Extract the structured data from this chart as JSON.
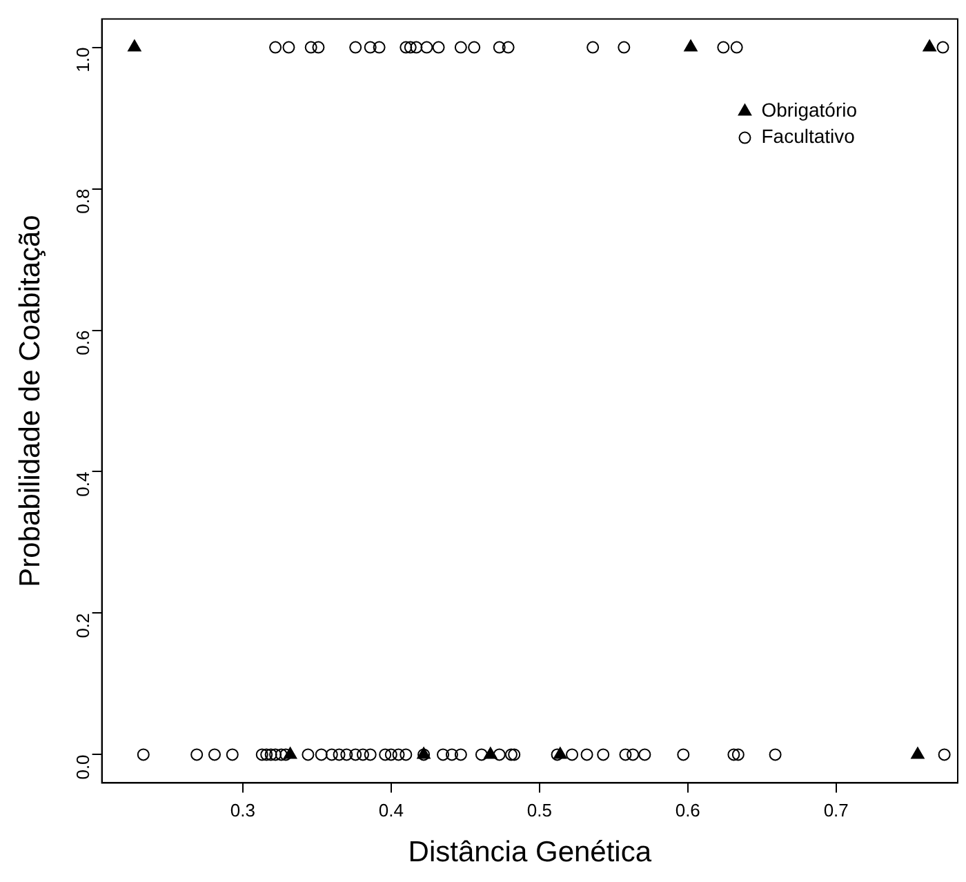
{
  "chart_data": {
    "type": "scatter",
    "xlabel": "Distância Genética",
    "ylabel": "Probabilidade de Coabitação",
    "xlim": [
      0.205,
      0.782
    ],
    "xticks": [
      0.3,
      0.4,
      0.5,
      0.6,
      0.7
    ],
    "ylim": [
      -0.04,
      1.04
    ],
    "yticks": [
      {
        "value": 0,
        "label": "0.0"
      },
      {
        "value": 0.2,
        "label": "0.2"
      },
      {
        "value": 0.4,
        "label": "0.4"
      },
      {
        "value": 0.6,
        "label": "0.6"
      },
      {
        "value": 0.8,
        "label": "0.8"
      },
      {
        "value": 1,
        "label": "1.0"
      }
    ],
    "grid": false,
    "legend": "top right",
    "series": [
      {
        "name": "Obrigatório",
        "color": "#000000",
        "marker": "triangle",
        "x": [
          0.227,
          0.602,
          0.763,
          0.332,
          0.422,
          0.467,
          0.514,
          0.755
        ],
        "values": [
          1,
          1,
          1,
          0,
          0,
          0,
          0,
          0
        ]
      },
      {
        "name": "Facultativo",
        "color": "#000000",
        "marker": "circle",
        "x": [
          0.322,
          0.331,
          0.346,
          0.351,
          0.376,
          0.386,
          0.392,
          0.41,
          0.413,
          0.417,
          0.424,
          0.432,
          0.447,
          0.456,
          0.473,
          0.479,
          0.536,
          0.557,
          0.624,
          0.633,
          0.772,
          0.233,
          0.269,
          0.281,
          0.293,
          0.313,
          0.316,
          0.319,
          0.322,
          0.326,
          0.329,
          0.344,
          0.353,
          0.36,
          0.365,
          0.37,
          0.376,
          0.381,
          0.386,
          0.396,
          0.4,
          0.405,
          0.41,
          0.422,
          0.435,
          0.441,
          0.447,
          0.461,
          0.473,
          0.481,
          0.483,
          0.512,
          0.522,
          0.532,
          0.543,
          0.558,
          0.563,
          0.571,
          0.597,
          0.631,
          0.634,
          0.659,
          0.773
        ],
        "values": [
          1,
          1,
          1,
          1,
          1,
          1,
          1,
          1,
          1,
          1,
          1,
          1,
          1,
          1,
          1,
          1,
          1,
          1,
          1,
          1,
          1,
          0,
          0,
          0,
          0,
          0,
          0,
          0,
          0,
          0,
          0,
          0,
          0,
          0,
          0,
          0,
          0,
          0,
          0,
          0,
          0,
          0,
          0,
          0,
          0,
          0,
          0,
          0,
          0,
          0,
          0,
          0,
          0,
          0,
          0,
          0,
          0,
          0,
          0,
          0,
          0,
          0,
          0
        ]
      }
    ]
  }
}
